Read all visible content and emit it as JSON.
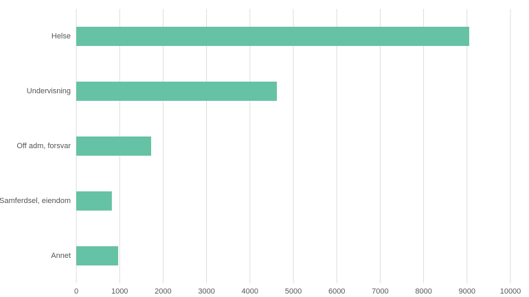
{
  "chart_data": {
    "type": "hbar",
    "categories": [
      "Helse",
      "Undervisning",
      "Off adm, forsvar",
      "Samferdsel, eiendom",
      "Annet"
    ],
    "values": [
      9050,
      4620,
      1725,
      820,
      965
    ],
    "color": "#66c2a5",
    "xlim": [
      0,
      10000
    ],
    "xticks": [
      0,
      1000,
      2000,
      3000,
      4000,
      5000,
      6000,
      7000,
      8000,
      9000,
      10000
    ],
    "grid": true
  }
}
